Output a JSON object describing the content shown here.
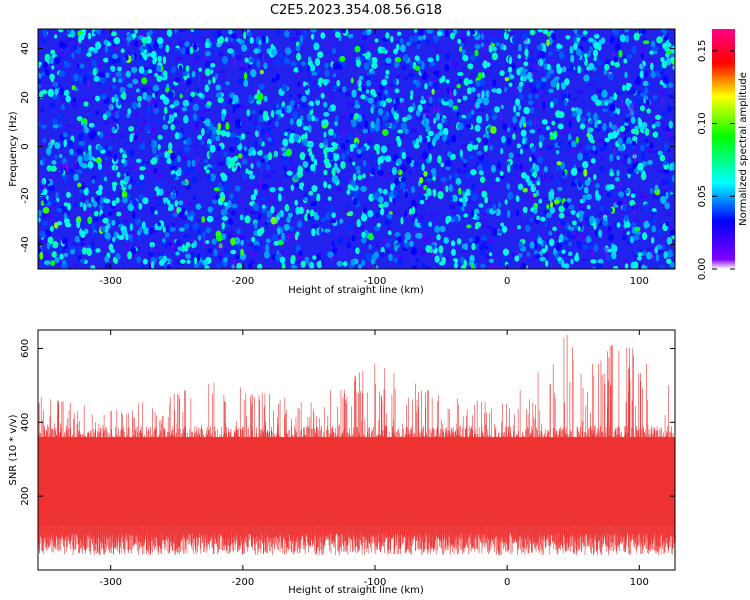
{
  "title": "C2E5.2023.354.08.56.G18",
  "chart_data": [
    {
      "type": "heatmap",
      "xlabel": "Height of straight line (km)",
      "ylabel": "Frequency (Hz)",
      "xlim": [
        -355,
        127
      ],
      "ylim": [
        -50,
        48
      ],
      "x_ticks": [
        -300,
        -200,
        -100,
        0,
        100
      ],
      "y_ticks": [
        -40,
        -20,
        0,
        20,
        40
      ],
      "colorbar": {
        "label": "Normalized spectral amplitude",
        "range": [
          0.0,
          0.165
        ],
        "ticks": [
          "0.00",
          "0.05",
          "0.10",
          "0.15"
        ],
        "tick_values": [
          0.0,
          0.05,
          0.1,
          0.15
        ],
        "colormap": [
          "#ffffff",
          "#7f00ff",
          "#0000ff",
          "#00ffff",
          "#00ff00",
          "#ffff00",
          "#ff0000",
          "#ff0088"
        ]
      },
      "background_level": 0.02,
      "typical_speckle_range": [
        0.03,
        0.07
      ],
      "max_speckle_level": 0.1
    },
    {
      "type": "area",
      "xlabel": "Height of straight line (km)",
      "ylabel": "SNR (10 * v/v)",
      "xlim": [
        -355,
        127
      ],
      "ylim": [
        0,
        650
      ],
      "x_ticks": [
        -300,
        -200,
        -100,
        0,
        100
      ],
      "y_ticks": [
        200,
        400,
        600
      ],
      "color": "#ee3333",
      "baseline_min": 40,
      "dense_band": [
        120,
        360
      ],
      "typical_peaks": [
        {
          "x": -355,
          "y": 470
        },
        {
          "x": -300,
          "y": 430
        },
        {
          "x": -220,
          "y": 510
        },
        {
          "x": -150,
          "y": 450
        },
        {
          "x": -100,
          "y": 560
        },
        {
          "x": -50,
          "y": 470
        },
        {
          "x": 0,
          "y": 450
        },
        {
          "x": 30,
          "y": 560
        },
        {
          "x": 45,
          "y": 640
        },
        {
          "x": 55,
          "y": 560
        },
        {
          "x": 80,
          "y": 610
        },
        {
          "x": 95,
          "y": 600
        },
        {
          "x": 120,
          "y": 500
        }
      ]
    }
  ]
}
